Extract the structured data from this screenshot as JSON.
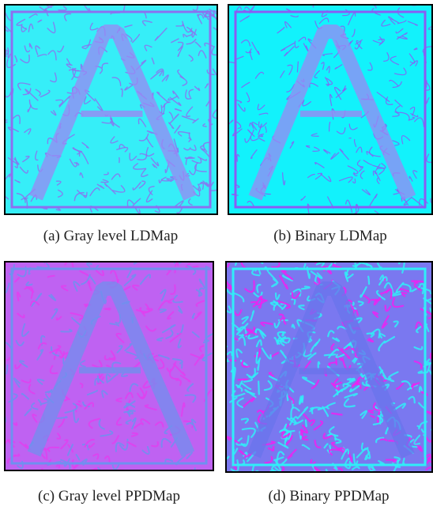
{
  "figures": [
    {
      "caption": "(a) Gray level LDMap"
    },
    {
      "caption": "(b) Binary LDMap"
    },
    {
      "caption": "(c) Gray level PPDMap"
    },
    {
      "caption": "(d) Binary PPDMap"
    }
  ]
}
